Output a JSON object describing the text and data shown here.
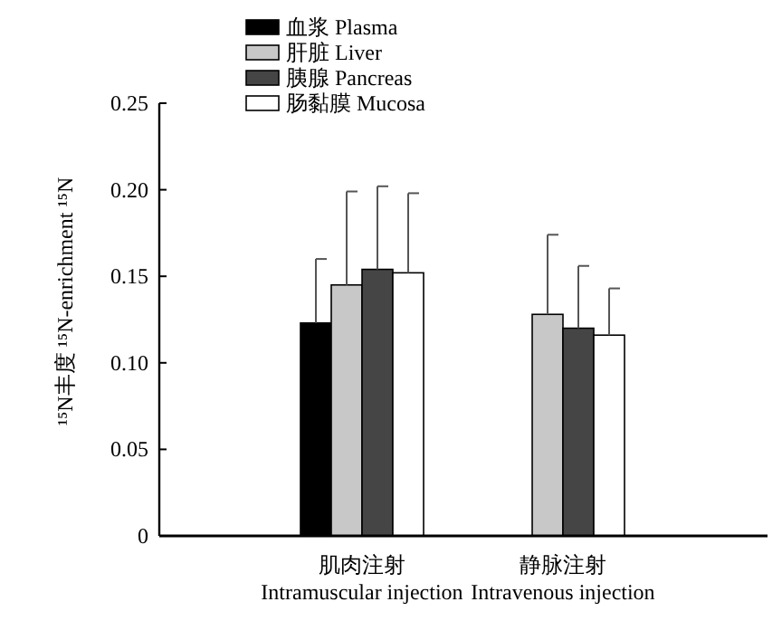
{
  "chart_data": {
    "type": "bar",
    "ylabel": "¹⁵N丰度  ¹⁵N-enrichment ¹⁵N",
    "categories": [
      "肌肉注射\nIntramuscular injection",
      "静脉注射\nIntravenous injection"
    ],
    "series": [
      {
        "name": "血浆  Plasma",
        "color": "#000000",
        "values": [
          0.123,
          null
        ],
        "errors": [
          [
            0.123,
            0.16
          ],
          null
        ]
      },
      {
        "name": "肝脏  Liver",
        "color": "#c8c8c8",
        "values": [
          0.145,
          0.128
        ],
        "errors": [
          [
            0.145,
            0.199
          ],
          [
            0.128,
            0.174
          ]
        ]
      },
      {
        "name": "胰腺  Pancreas",
        "color": "#454545",
        "values": [
          0.154,
          0.12
        ],
        "errors": [
          [
            0.154,
            0.202
          ],
          [
            0.12,
            0.156
          ]
        ]
      },
      {
        "name": "肠黏膜  Mucosa",
        "color": "#ffffff",
        "values": [
          0.152,
          0.116
        ],
        "errors": [
          [
            0.152,
            0.198
          ],
          [
            0.116,
            0.143
          ]
        ]
      }
    ],
    "ylim": [
      0,
      0.25
    ],
    "yticks": [
      0,
      {
        "value": 0.05,
        "label": "0.05"
      },
      {
        "value": 0.1,
        "label": "0.10"
      },
      {
        "value": 0.15,
        "label": "0.15"
      },
      {
        "value": 0.2,
        "label": "0.20"
      },
      {
        "value": 0.25,
        "label": "0.25"
      }
    ],
    "grid": false,
    "legend": "top"
  }
}
